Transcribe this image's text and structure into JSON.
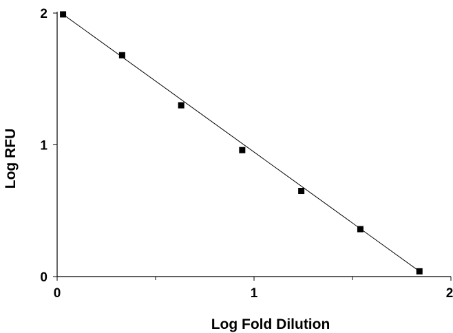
{
  "chart_data": {
    "type": "scatter",
    "title": "",
    "xlabel": "Log Fold Dilution",
    "ylabel": "Log RFU",
    "xlim": [
      0,
      2
    ],
    "ylim": [
      0,
      2
    ],
    "x_major_ticks": [
      0,
      1,
      2
    ],
    "x_minor_ticks": [
      0.5,
      1.5
    ],
    "y_major_ticks": [
      0,
      1,
      2
    ],
    "x_tick_labels": [
      "0",
      "1",
      "2"
    ],
    "y_tick_labels": [
      "0",
      "1",
      "2"
    ],
    "grid": false,
    "series": [
      {
        "x": [
          0.03,
          0.33,
          0.63,
          0.94,
          1.24,
          1.54,
          1.84
        ],
        "y": [
          1.99,
          1.68,
          1.3,
          0.96,
          0.65,
          0.36,
          0.04
        ],
        "marker": "square",
        "color": "#000000"
      }
    ],
    "fit_line": {
      "x": [
        0.03,
        1.84
      ],
      "y": [
        1.99,
        0.04
      ],
      "color": "#000000"
    }
  }
}
